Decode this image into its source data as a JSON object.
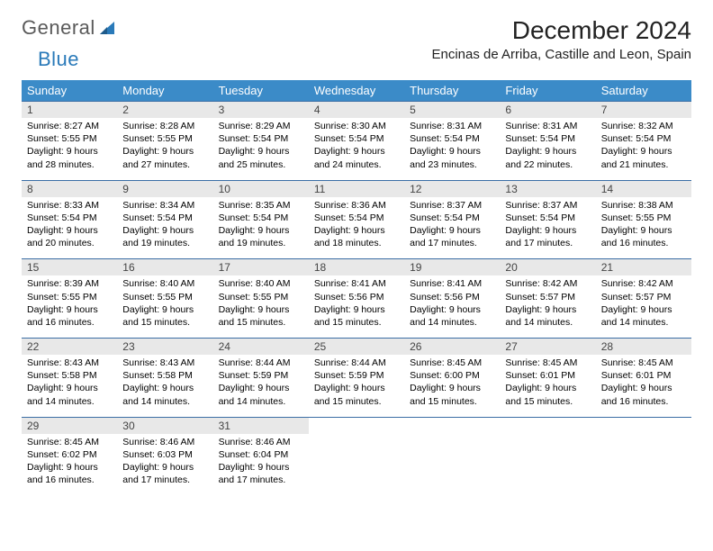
{
  "logo": {
    "text1": "General",
    "text2": "Blue"
  },
  "title": "December 2024",
  "location": "Encinas de Arriba, Castille and Leon, Spain",
  "colors": {
    "header_bg": "#3b8bc8",
    "header_text": "#ffffff",
    "week_border": "#3b6ea5",
    "daynum_bg": "#e8e8e8",
    "logo_gray": "#5a5a5a",
    "logo_blue": "#2a7ab9"
  },
  "day_headers": [
    "Sunday",
    "Monday",
    "Tuesday",
    "Wednesday",
    "Thursday",
    "Friday",
    "Saturday"
  ],
  "weeks": [
    [
      {
        "n": "1",
        "sr": "8:27 AM",
        "ss": "5:55 PM",
        "dl": "9 hours and 28 minutes."
      },
      {
        "n": "2",
        "sr": "8:28 AM",
        "ss": "5:55 PM",
        "dl": "9 hours and 27 minutes."
      },
      {
        "n": "3",
        "sr": "8:29 AM",
        "ss": "5:54 PM",
        "dl": "9 hours and 25 minutes."
      },
      {
        "n": "4",
        "sr": "8:30 AM",
        "ss": "5:54 PM",
        "dl": "9 hours and 24 minutes."
      },
      {
        "n": "5",
        "sr": "8:31 AM",
        "ss": "5:54 PM",
        "dl": "9 hours and 23 minutes."
      },
      {
        "n": "6",
        "sr": "8:31 AM",
        "ss": "5:54 PM",
        "dl": "9 hours and 22 minutes."
      },
      {
        "n": "7",
        "sr": "8:32 AM",
        "ss": "5:54 PM",
        "dl": "9 hours and 21 minutes."
      }
    ],
    [
      {
        "n": "8",
        "sr": "8:33 AM",
        "ss": "5:54 PM",
        "dl": "9 hours and 20 minutes."
      },
      {
        "n": "9",
        "sr": "8:34 AM",
        "ss": "5:54 PM",
        "dl": "9 hours and 19 minutes."
      },
      {
        "n": "10",
        "sr": "8:35 AM",
        "ss": "5:54 PM",
        "dl": "9 hours and 19 minutes."
      },
      {
        "n": "11",
        "sr": "8:36 AM",
        "ss": "5:54 PM",
        "dl": "9 hours and 18 minutes."
      },
      {
        "n": "12",
        "sr": "8:37 AM",
        "ss": "5:54 PM",
        "dl": "9 hours and 17 minutes."
      },
      {
        "n": "13",
        "sr": "8:37 AM",
        "ss": "5:54 PM",
        "dl": "9 hours and 17 minutes."
      },
      {
        "n": "14",
        "sr": "8:38 AM",
        "ss": "5:55 PM",
        "dl": "9 hours and 16 minutes."
      }
    ],
    [
      {
        "n": "15",
        "sr": "8:39 AM",
        "ss": "5:55 PM",
        "dl": "9 hours and 16 minutes."
      },
      {
        "n": "16",
        "sr": "8:40 AM",
        "ss": "5:55 PM",
        "dl": "9 hours and 15 minutes."
      },
      {
        "n": "17",
        "sr": "8:40 AM",
        "ss": "5:55 PM",
        "dl": "9 hours and 15 minutes."
      },
      {
        "n": "18",
        "sr": "8:41 AM",
        "ss": "5:56 PM",
        "dl": "9 hours and 15 minutes."
      },
      {
        "n": "19",
        "sr": "8:41 AM",
        "ss": "5:56 PM",
        "dl": "9 hours and 14 minutes."
      },
      {
        "n": "20",
        "sr": "8:42 AM",
        "ss": "5:57 PM",
        "dl": "9 hours and 14 minutes."
      },
      {
        "n": "21",
        "sr": "8:42 AM",
        "ss": "5:57 PM",
        "dl": "9 hours and 14 minutes."
      }
    ],
    [
      {
        "n": "22",
        "sr": "8:43 AM",
        "ss": "5:58 PM",
        "dl": "9 hours and 14 minutes."
      },
      {
        "n": "23",
        "sr": "8:43 AM",
        "ss": "5:58 PM",
        "dl": "9 hours and 14 minutes."
      },
      {
        "n": "24",
        "sr": "8:44 AM",
        "ss": "5:59 PM",
        "dl": "9 hours and 14 minutes."
      },
      {
        "n": "25",
        "sr": "8:44 AM",
        "ss": "5:59 PM",
        "dl": "9 hours and 15 minutes."
      },
      {
        "n": "26",
        "sr": "8:45 AM",
        "ss": "6:00 PM",
        "dl": "9 hours and 15 minutes."
      },
      {
        "n": "27",
        "sr": "8:45 AM",
        "ss": "6:01 PM",
        "dl": "9 hours and 15 minutes."
      },
      {
        "n": "28",
        "sr": "8:45 AM",
        "ss": "6:01 PM",
        "dl": "9 hours and 16 minutes."
      }
    ],
    [
      {
        "n": "29",
        "sr": "8:45 AM",
        "ss": "6:02 PM",
        "dl": "9 hours and 16 minutes."
      },
      {
        "n": "30",
        "sr": "8:46 AM",
        "ss": "6:03 PM",
        "dl": "9 hours and 17 minutes."
      },
      {
        "n": "31",
        "sr": "8:46 AM",
        "ss": "6:04 PM",
        "dl": "9 hours and 17 minutes."
      },
      null,
      null,
      null,
      null
    ]
  ],
  "labels": {
    "sunrise": "Sunrise:",
    "sunset": "Sunset:",
    "daylight": "Daylight:"
  }
}
